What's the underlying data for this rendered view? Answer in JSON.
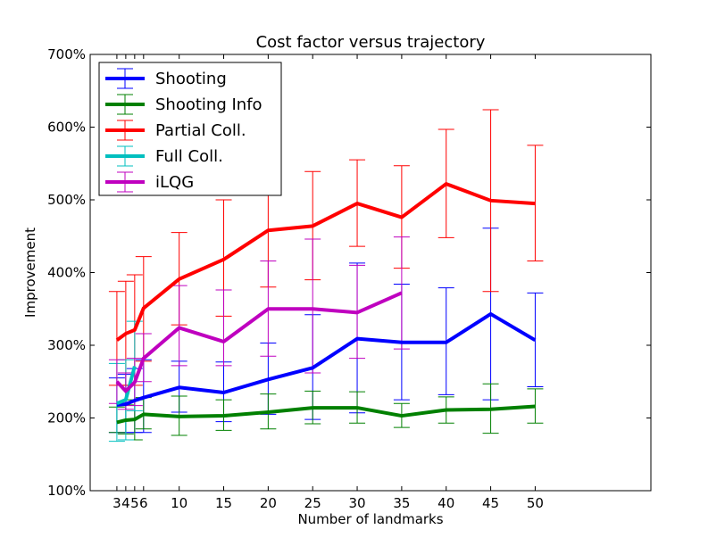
{
  "chart_data": {
    "type": "line",
    "title": "Cost factor versus trajectory",
    "xlabel": "Number of landmarks",
    "ylabel": "Improvement",
    "xlim": [
      0,
      63
    ],
    "ylim": [
      100,
      700
    ],
    "x_ticks": [
      3,
      4,
      5,
      6,
      10,
      15,
      20,
      25,
      30,
      35,
      40,
      45,
      50
    ],
    "x_tick_labels": [
      "3",
      "4",
      "5",
      "6",
      "10",
      "15",
      "20",
      "25",
      "30",
      "35",
      "40",
      "45",
      "50"
    ],
    "y_ticks": [
      100,
      200,
      300,
      400,
      500,
      600,
      700
    ],
    "y_tick_labels": [
      "100%",
      "200%",
      "300%",
      "400%",
      "500%",
      "600%",
      "700%"
    ],
    "grid": false,
    "legend_position": "top-left",
    "series": [
      {
        "name": "Shooting",
        "color": "#0000ff",
        "x": [
          3,
          4,
          5,
          6,
          10,
          15,
          20,
          25,
          30,
          35,
          40,
          45,
          50
        ],
        "y": [
          218,
          219,
          224,
          228,
          242,
          235,
          253,
          269,
          309,
          304,
          304,
          343,
          307
        ],
        "err_low": [
          180,
          180,
          180,
          180,
          208,
          195,
          205,
          198,
          207,
          225,
          232,
          225,
          243
        ],
        "err_high": [
          255,
          260,
          268,
          280,
          278,
          277,
          303,
          342,
          413,
          384,
          379,
          461,
          372
        ]
      },
      {
        "name": "Shooting Info",
        "color": "#008000",
        "x": [
          3,
          4,
          5,
          6,
          10,
          15,
          20,
          25,
          30,
          35,
          40,
          45,
          50
        ],
        "y": [
          194,
          197,
          198,
          205,
          202,
          203,
          208,
          214,
          214,
          203,
          211,
          212,
          216
        ],
        "err_low": [
          180,
          178,
          170,
          185,
          176,
          183,
          185,
          192,
          193,
          187,
          193,
          179,
          193
        ],
        "err_high": [
          215,
          218,
          225,
          228,
          230,
          225,
          233,
          237,
          236,
          220,
          229,
          247,
          240
        ]
      },
      {
        "name": "Partial Coll.",
        "color": "#ff0000",
        "x": [
          3,
          4,
          5,
          6,
          10,
          15,
          20,
          25,
          30,
          35,
          40,
          45,
          50
        ],
        "y": [
          307,
          316,
          321,
          351,
          391,
          418,
          458,
          464,
          495,
          476,
          522,
          499,
          495
        ],
        "err_low": [
          245,
          245,
          245,
          278,
          328,
          340,
          380,
          390,
          436,
          406,
          448,
          374,
          416
        ],
        "err_high": [
          374,
          388,
          397,
          422,
          455,
          500,
          537,
          539,
          555,
          547,
          597,
          624,
          575
        ]
      },
      {
        "name": "Full Coll.",
        "color": "#00bfbf",
        "x": [
          3,
          4,
          5
        ],
        "y": [
          220,
          225,
          271
        ],
        "err_low": [
          168,
          170,
          210
        ],
        "err_high": [
          275,
          280,
          333
        ]
      },
      {
        "name": "iLQG",
        "color": "#bf00bf",
        "x": [
          3,
          4,
          5,
          6,
          10,
          15,
          20,
          25,
          30,
          35
        ],
        "y": [
          250,
          237,
          249,
          282,
          324,
          305,
          350,
          350,
          345,
          372
        ],
        "err_low": [
          220,
          212,
          217,
          250,
          272,
          272,
          285,
          262,
          282,
          295
        ],
        "err_high": [
          280,
          262,
          282,
          316,
          382,
          376,
          416,
          446,
          410,
          449
        ]
      }
    ]
  }
}
